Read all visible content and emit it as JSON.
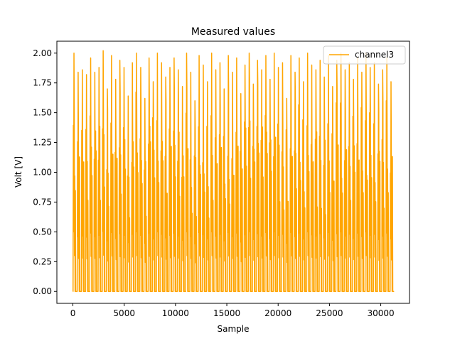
{
  "chart_data": {
    "type": "line",
    "title": "Measured values",
    "xlabel": "Sample",
    "ylabel": "Volt [V]",
    "xlim": [
      -1560,
      32800
    ],
    "ylim": [
      -0.1,
      2.1
    ],
    "x_ticks": [
      0,
      5000,
      10000,
      15000,
      20000,
      25000,
      30000
    ],
    "y_ticks": [
      0.0,
      0.25,
      0.5,
      0.75,
      1.0,
      1.25,
      1.5,
      1.75,
      2.0
    ],
    "x_tick_labels": [
      "0",
      "5000",
      "10000",
      "15000",
      "20000",
      "25000",
      "30000"
    ],
    "y_tick_labels": [
      "0.00",
      "0.25",
      "0.50",
      "0.75",
      "1.00",
      "1.25",
      "1.50",
      "1.75",
      "2.00"
    ],
    "legend_position": "top-right",
    "grid": false,
    "series": [
      {
        "name": "channel3",
        "color": "#FFA500",
        "x_start": 0,
        "x_end": 31300,
        "peaks": [
          2.0,
          1.84,
          1.86,
          1.82,
          1.96,
          1.84,
          1.88,
          2.02,
          1.7,
          1.98,
          1.78,
          1.94,
          1.88,
          1.64,
          1.92,
          2.0,
          1.88,
          1.62,
          1.96,
          1.76,
          2.0,
          1.92,
          1.8,
          1.88,
          1.96,
          1.86,
          1.72,
          2.0,
          1.84,
          1.6,
          1.98,
          1.9,
          1.76,
          2.0,
          1.86,
          1.92,
          1.7,
          1.98,
          1.84,
          1.96,
          1.66,
          1.9,
          2.0,
          1.74,
          1.94,
          1.86,
          1.98,
          1.78,
          2.0,
          1.88,
          1.92,
          1.62,
          1.98,
          1.84,
          1.96,
          1.76,
          2.0,
          1.9,
          1.86,
          1.94,
          1.8,
          1.98,
          1.72,
          1.94,
          2.0,
          1.86,
          1.92,
          1.78,
          1.96,
          1.84,
          2.0,
          1.88,
          1.92,
          1.74,
          1.86,
          1.96,
          1.76
        ]
      }
    ]
  }
}
